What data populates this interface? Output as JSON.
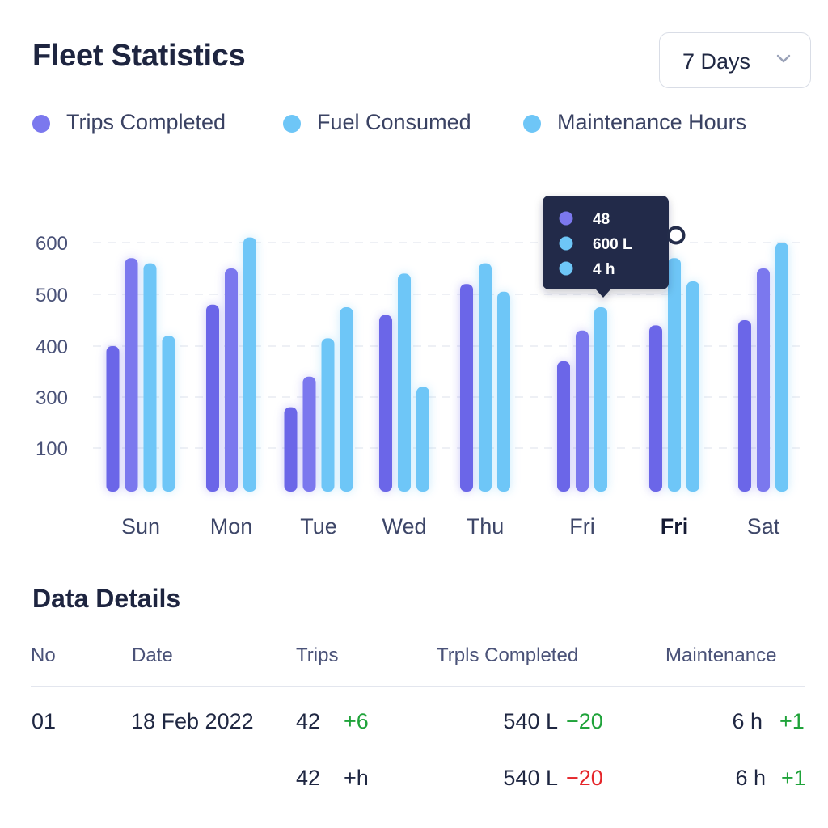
{
  "header": {
    "title": "Fleet Statistics",
    "range_select": {
      "value": "7 Days",
      "icon": "chevron-down-icon"
    }
  },
  "legend": [
    {
      "label": "Trips Completed",
      "color": "#7b78ee"
    },
    {
      "label": "Fuel Consumed",
      "color": "#6ec6f7"
    },
    {
      "label": "Maintenance Hours",
      "color": "#6ec6f7"
    }
  ],
  "chart_data": {
    "type": "bar",
    "y_ticks": [
      "100",
      "300",
      "400",
      "500",
      "600"
    ],
    "categories": [
      "Sun",
      "Mon",
      "Tue",
      "Wed",
      "Thu",
      "Fri",
      "Fri",
      "Sat"
    ],
    "highlighted_category": 6,
    "bars_per_category": [
      [
        {
          "series": "Trips Completed",
          "value": 400
        },
        {
          "series": "Trips Completed",
          "value": 570
        },
        {
          "series": "Fuel Consumed",
          "value": 560
        },
        {
          "series": "Maintenance Hours",
          "value": 420
        }
      ],
      [
        {
          "series": "Trips Completed",
          "value": 480
        },
        {
          "series": "Trips Completed",
          "value": 550
        },
        {
          "series": "Fuel Consumed",
          "value": 610
        }
      ],
      [
        {
          "series": "Trips Completed",
          "value": 260
        },
        {
          "series": "Trips Completed",
          "value": 340
        },
        {
          "series": "Fuel Consumed",
          "value": 415
        },
        {
          "series": "Maintenance Hours",
          "value": 475
        }
      ],
      [
        {
          "series": "Trips Completed",
          "value": 460
        },
        {
          "series": "Fuel Consumed",
          "value": 540
        },
        {
          "series": "Maintenance Hours",
          "value": 320
        }
      ],
      [
        {
          "series": "Trips Completed",
          "value": 520
        },
        {
          "series": "Fuel Consumed",
          "value": 560
        },
        {
          "series": "Maintenance Hours",
          "value": 505
        }
      ],
      [
        {
          "series": "Trips Completed",
          "value": 370
        },
        {
          "series": "Trips Completed",
          "value": 430
        },
        {
          "series": "Fuel Consumed",
          "value": 475
        }
      ],
      [
        {
          "series": "Trips Completed",
          "value": 440
        },
        {
          "series": "Fuel Consumed",
          "value": 570
        },
        {
          "series": "Maintenance Hours",
          "value": 525
        }
      ],
      [
        {
          "series": "Trips Completed",
          "value": 450
        },
        {
          "series": "Trips Completed",
          "value": 550
        },
        {
          "series": "Fuel Consumed",
          "value": 600
        }
      ]
    ],
    "tooltip": {
      "category_index": 5,
      "rows": [
        {
          "color": "#7b78ee",
          "text": "48"
        },
        {
          "color": "#6ec6f7",
          "text": "600 L"
        },
        {
          "color": "#6ec6f7",
          "text": "4 h"
        }
      ]
    }
  },
  "details": {
    "title": "Data Details",
    "columns": [
      "No",
      "Date",
      "Trips",
      "Trpls Completed",
      "Maintenance"
    ],
    "rows": [
      {
        "no": "01",
        "date": "18 Feb 2022",
        "trips": "42",
        "trips_delta": "+6",
        "trips_delta_tone": "pos",
        "fuel": "540 L",
        "fuel_delta": "−20",
        "fuel_delta_tone": "pos",
        "maint": "6 h",
        "maint_delta": "+1",
        "maint_delta_tone": "pos"
      },
      {
        "no": "",
        "date": "",
        "trips": "42",
        "trips_delta": "+h",
        "trips_delta_tone": "neutral",
        "fuel": "540 L",
        "fuel_delta": "−20",
        "fuel_delta_tone": "neg",
        "maint": "6 h",
        "maint_delta": "+1",
        "maint_delta_tone": "pos"
      }
    ]
  }
}
